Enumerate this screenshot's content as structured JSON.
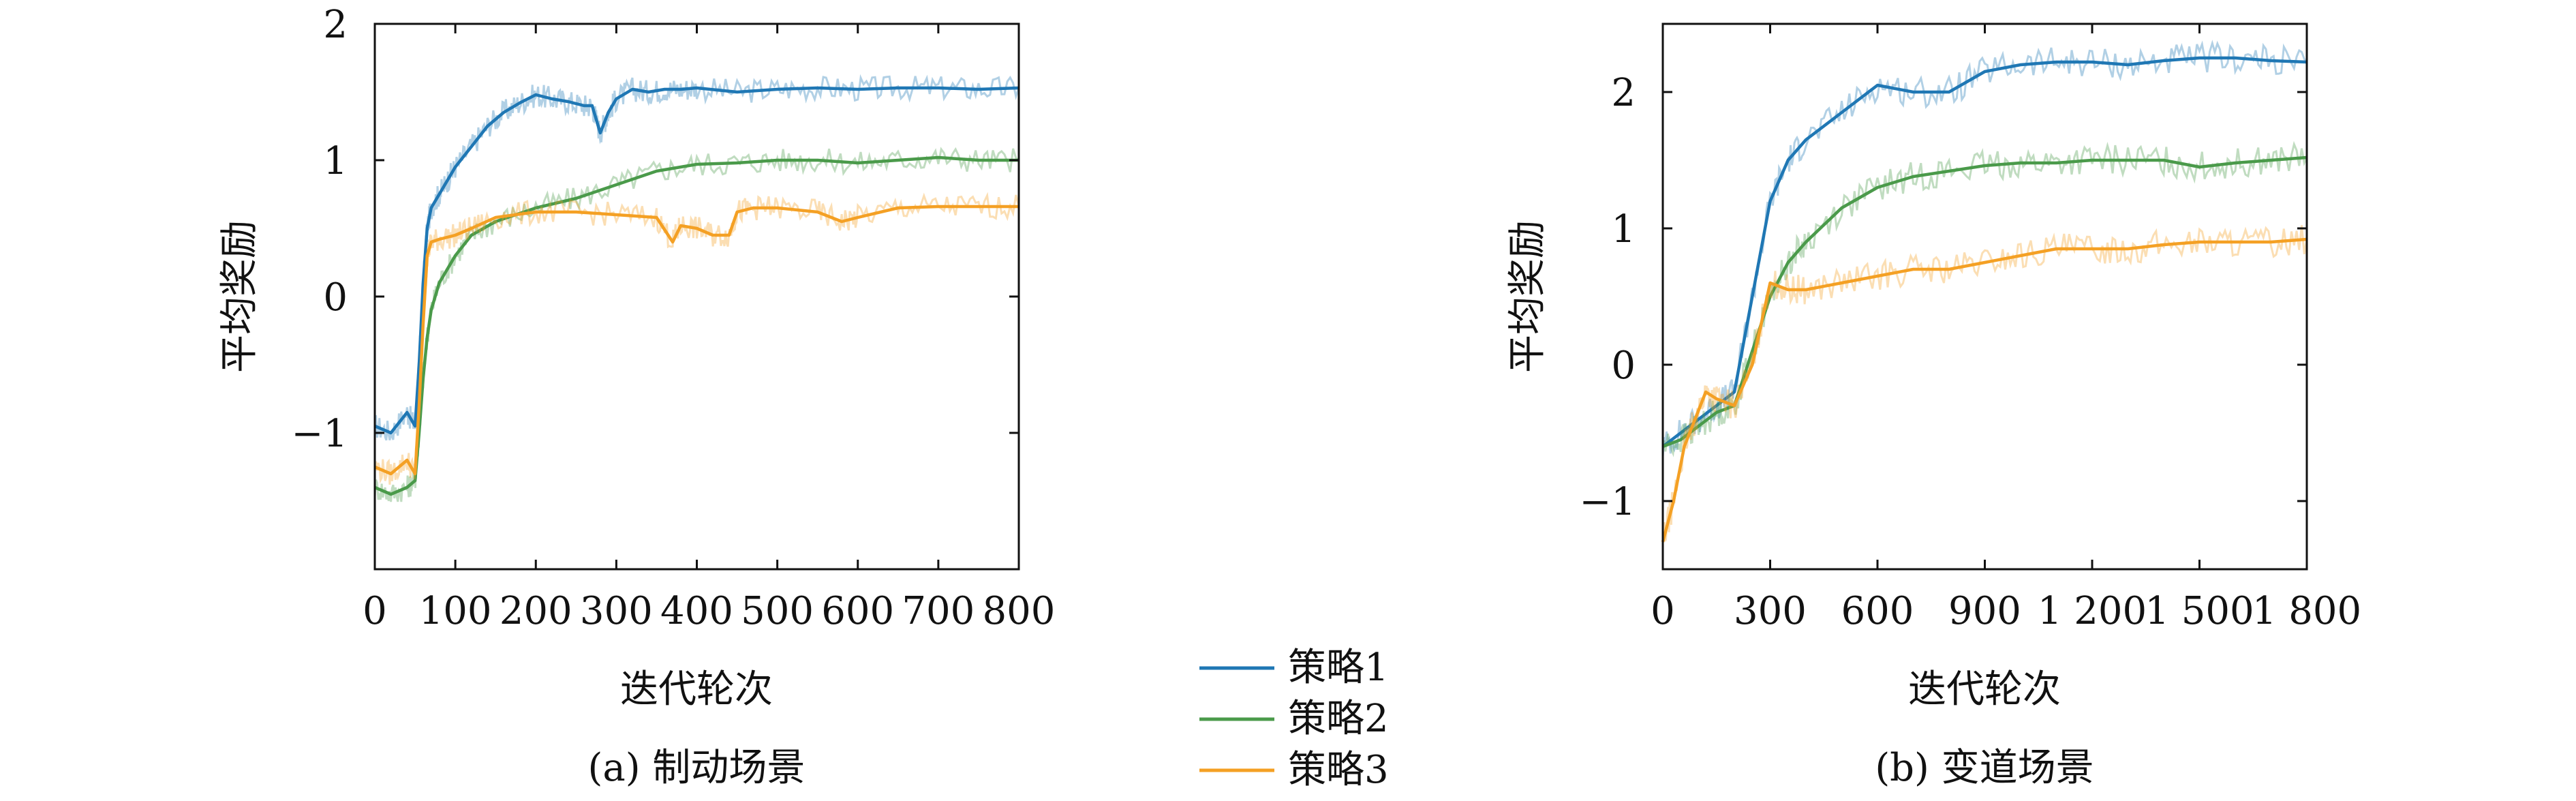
{
  "chart_data": [
    {
      "type": "line",
      "caption": "(a) 制动场景",
      "xlabel": "迭代轮次",
      "ylabel": "平均奖励",
      "xlim": [
        0,
        800
      ],
      "ylim": [
        -2,
        2
      ],
      "xticks": [
        0,
        100,
        200,
        300,
        400,
        500,
        600,
        700,
        800
      ],
      "xtick_labels": [
        "0",
        "100",
        "200",
        "300",
        "400",
        "500",
        "600",
        "700",
        "800"
      ],
      "yticks": [
        -1,
        0,
        1,
        2
      ],
      "ytick_labels": [
        "−1",
        "0",
        "1",
        "2"
      ],
      "grid": false,
      "series": [
        {
          "name": "策略1",
          "color": "#1f77b4",
          "x": [
            0,
            20,
            40,
            50,
            55,
            60,
            65,
            70,
            80,
            90,
            100,
            120,
            140,
            160,
            180,
            200,
            220,
            240,
            260,
            270,
            280,
            290,
            300,
            320,
            340,
            360,
            380,
            400,
            450,
            500,
            550,
            600,
            650,
            700,
            750,
            800
          ],
          "y": [
            -0.95,
            -1.0,
            -0.85,
            -0.95,
            -0.5,
            0.1,
            0.5,
            0.65,
            0.75,
            0.85,
            0.95,
            1.1,
            1.25,
            1.35,
            1.42,
            1.48,
            1.45,
            1.43,
            1.4,
            1.4,
            1.2,
            1.35,
            1.45,
            1.52,
            1.5,
            1.52,
            1.52,
            1.53,
            1.5,
            1.52,
            1.53,
            1.52,
            1.53,
            1.53,
            1.52,
            1.53
          ]
        },
        {
          "name": "策略2",
          "color": "#4a9a4a",
          "x": [
            0,
            20,
            40,
            50,
            55,
            60,
            65,
            70,
            80,
            100,
            120,
            150,
            200,
            250,
            300,
            350,
            400,
            450,
            500,
            550,
            600,
            650,
            700,
            750,
            800
          ],
          "y": [
            -1.4,
            -1.45,
            -1.4,
            -1.35,
            -1.0,
            -0.6,
            -0.3,
            -0.1,
            0.1,
            0.3,
            0.45,
            0.55,
            0.65,
            0.72,
            0.82,
            0.92,
            0.97,
            0.98,
            1.0,
            1.0,
            0.98,
            1.0,
            1.02,
            1.0,
            1.0
          ]
        },
        {
          "name": "策略3",
          "color": "#f4a024",
          "x": [
            0,
            20,
            40,
            50,
            55,
            60,
            65,
            70,
            80,
            100,
            120,
            150,
            200,
            250,
            300,
            350,
            370,
            380,
            400,
            420,
            440,
            450,
            470,
            500,
            550,
            580,
            600,
            650,
            700,
            750,
            800
          ],
          "y": [
            -1.25,
            -1.3,
            -1.2,
            -1.3,
            -0.8,
            -0.2,
            0.3,
            0.4,
            0.42,
            0.45,
            0.5,
            0.58,
            0.62,
            0.62,
            0.6,
            0.58,
            0.4,
            0.52,
            0.5,
            0.45,
            0.45,
            0.62,
            0.65,
            0.65,
            0.62,
            0.55,
            0.58,
            0.65,
            0.66,
            0.66,
            0.66
          ]
        }
      ]
    },
    {
      "type": "line",
      "caption": "(b) 变道场景",
      "xlabel": "迭代轮次",
      "ylabel": "平均奖励",
      "xlim": [
        0,
        1800
      ],
      "ylim": [
        -1.5,
        2.5
      ],
      "xticks": [
        0,
        300,
        600,
        900,
        1200,
        1500,
        1800
      ],
      "xtick_labels": [
        "0",
        "300",
        "600",
        "900",
        "1 200",
        "1 500",
        "1 800"
      ],
      "yticks": [
        -1,
        0,
        1,
        2
      ],
      "ytick_labels": [
        "−1",
        "0",
        "1",
        "2"
      ],
      "grid": false,
      "series": [
        {
          "name": "策略1",
          "color": "#1f77b4",
          "x": [
            0,
            50,
            100,
            150,
            200,
            250,
            300,
            350,
            400,
            500,
            600,
            700,
            800,
            900,
            1000,
            1100,
            1200,
            1300,
            1400,
            1500,
            1600,
            1700,
            1800
          ],
          "y": [
            -0.6,
            -0.5,
            -0.4,
            -0.3,
            -0.2,
            0.5,
            1.2,
            1.5,
            1.65,
            1.85,
            2.05,
            2.0,
            2.0,
            2.15,
            2.2,
            2.22,
            2.22,
            2.2,
            2.23,
            2.25,
            2.25,
            2.23,
            2.22
          ]
        },
        {
          "name": "策略2",
          "color": "#4a9a4a",
          "x": [
            0,
            50,
            100,
            150,
            200,
            250,
            300,
            350,
            400,
            500,
            600,
            700,
            800,
            900,
            1000,
            1100,
            1200,
            1300,
            1400,
            1500,
            1600,
            1700,
            1800
          ],
          "y": [
            -0.6,
            -0.55,
            -0.45,
            -0.35,
            -0.3,
            0.1,
            0.5,
            0.75,
            0.9,
            1.15,
            1.3,
            1.38,
            1.42,
            1.46,
            1.48,
            1.48,
            1.5,
            1.5,
            1.5,
            1.45,
            1.48,
            1.5,
            1.52
          ]
        },
        {
          "name": "策略3",
          "color": "#f4a024",
          "x": [
            0,
            30,
            60,
            90,
            120,
            150,
            200,
            250,
            300,
            350,
            400,
            500,
            600,
            700,
            800,
            900,
            1000,
            1100,
            1200,
            1300,
            1400,
            1500,
            1600,
            1700,
            1800
          ],
          "y": [
            -1.3,
            -1.0,
            -0.6,
            -0.4,
            -0.2,
            -0.25,
            -0.3,
            0.0,
            0.6,
            0.55,
            0.55,
            0.6,
            0.65,
            0.7,
            0.7,
            0.75,
            0.8,
            0.85,
            0.85,
            0.85,
            0.88,
            0.9,
            0.9,
            0.9,
            0.92
          ]
        }
      ]
    }
  ],
  "legend": {
    "placement": "bottom-center",
    "entries": [
      {
        "label": "策略1",
        "color": "#1f77b4"
      },
      {
        "label": "策略2",
        "color": "#4a9a4a"
      },
      {
        "label": "策略3",
        "color": "#f4a024"
      }
    ]
  }
}
